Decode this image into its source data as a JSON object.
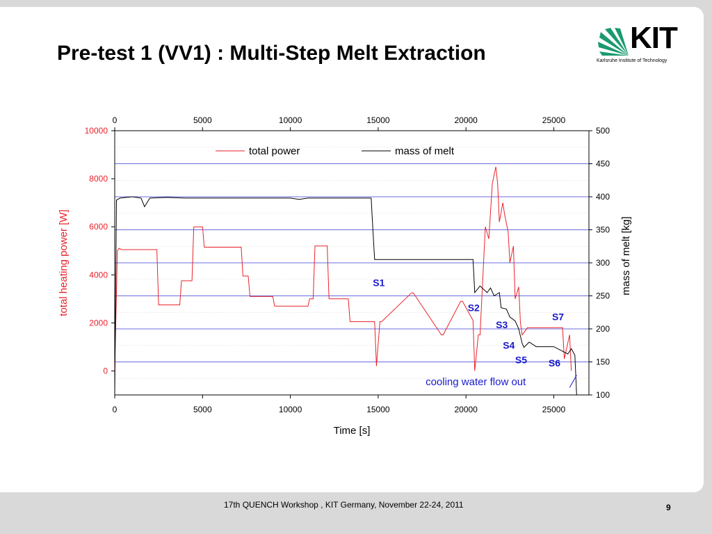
{
  "slide": {
    "title": "Pre-test 1 (VV1) : Multi-Step Melt Extraction",
    "logo_text": "KIT",
    "logo_subtitle": "Karlsruhe Institute of Technology",
    "footer": "17th QUENCH Workshop , KIT Germany, November 22-24, 2011",
    "page_number": "9"
  },
  "colors": {
    "power": "#e8222a",
    "mass": "#000000",
    "annotation": "#1a1acc",
    "gridline": "#3a3ad0",
    "left_axis": "#e8222a",
    "logo_green": "#1a9a6f"
  },
  "chart_data": {
    "type": "line",
    "xlabel": "Time [s]",
    "ylabel_left": "total heating power [W]",
    "ylabel_right": "mass of melt [kg]",
    "xlim": [
      0,
      27000
    ],
    "ylim_left": [
      -1000,
      10000
    ],
    "ylim_right": [
      100,
      500
    ],
    "x_ticks": [
      0,
      5000,
      10000,
      15000,
      20000,
      25000
    ],
    "y_ticks_left": [
      0,
      2000,
      4000,
      6000,
      8000,
      10000
    ],
    "y_ticks_right": [
      100,
      150,
      200,
      250,
      300,
      350,
      400,
      450,
      500
    ],
    "grid": "horizontal",
    "legend_position": "top",
    "series": [
      {
        "name": "total power",
        "axis": "left",
        "x": [
          0,
          150,
          250,
          400,
          2400,
          2500,
          3700,
          3800,
          4400,
          4500,
          5000,
          5100,
          7200,
          7300,
          7600,
          7700,
          9000,
          9100,
          11000,
          11100,
          11300,
          11400,
          12100,
          12200,
          13300,
          13400,
          14800,
          14900,
          15100,
          15200,
          16900,
          17000,
          18600,
          18700,
          19700,
          19800,
          20400,
          20500,
          20700,
          20800,
          21100,
          21300,
          21500,
          21700,
          21800,
          21900,
          22100,
          22200,
          22400,
          22500,
          22700,
          22800,
          23000,
          23100,
          23200,
          23500,
          23600,
          24400,
          24500,
          25500,
          25600,
          25900,
          26000
        ],
        "values": [
          0,
          5000,
          5100,
          5050,
          5050,
          2750,
          2750,
          3750,
          3750,
          6000,
          6000,
          5150,
          5150,
          3950,
          3950,
          3100,
          3100,
          2700,
          2700,
          3000,
          3000,
          5200,
          5200,
          3000,
          3000,
          2050,
          2050,
          200,
          2050,
          2050,
          3250,
          3250,
          1500,
          1500,
          2900,
          2900,
          2100,
          0,
          1500,
          1500,
          6000,
          5500,
          7800,
          8500,
          7800,
          6200,
          7000,
          6500,
          5800,
          4500,
          5200,
          3000,
          3500,
          2000,
          1500,
          1800,
          1800,
          1800,
          1800,
          1800,
          500,
          1500,
          0
        ]
      },
      {
        "name": "mass of melt",
        "axis": "right",
        "x": [
          0,
          100,
          300,
          1000,
          1500,
          1700,
          2000,
          3000,
          4000,
          5000,
          6000,
          7000,
          8000,
          9000,
          10000,
          10500,
          11000,
          12000,
          13000,
          14000,
          14600,
          14700,
          14800,
          16000,
          18000,
          20000,
          20400,
          20500,
          20800,
          21200,
          21400,
          21600,
          21900,
          22000,
          22300,
          22500,
          22800,
          23000,
          23200,
          23300,
          23600,
          24000,
          25000,
          25800,
          26000,
          26200,
          26300
        ],
        "values": [
          100,
          395,
          398,
          400,
          398,
          385,
          398,
          399,
          398,
          398,
          398,
          398,
          398,
          398,
          398,
          396,
          398,
          398,
          398,
          398,
          398,
          350,
          305,
          305,
          305,
          305,
          305,
          255,
          265,
          255,
          262,
          250,
          255,
          232,
          230,
          218,
          212,
          200,
          178,
          172,
          180,
          173,
          173,
          162,
          170,
          160,
          100
        ]
      }
    ],
    "annotations": [
      {
        "label": "S1",
        "x": 14700,
        "y_right": 265
      },
      {
        "label": "S2",
        "x": 20100,
        "y_right": 227
      },
      {
        "label": "S3",
        "x": 21700,
        "y_right": 201
      },
      {
        "label": "S4",
        "x": 22100,
        "y_right": 170
      },
      {
        "label": "S5",
        "x": 22800,
        "y_right": 148
      },
      {
        "label": "S7",
        "x": 24900,
        "y_right": 213
      },
      {
        "label": "S6",
        "x": 24700,
        "y_right": 143
      },
      {
        "label": "cooling water flow out",
        "x": 17700,
        "y_right": 115
      }
    ]
  }
}
